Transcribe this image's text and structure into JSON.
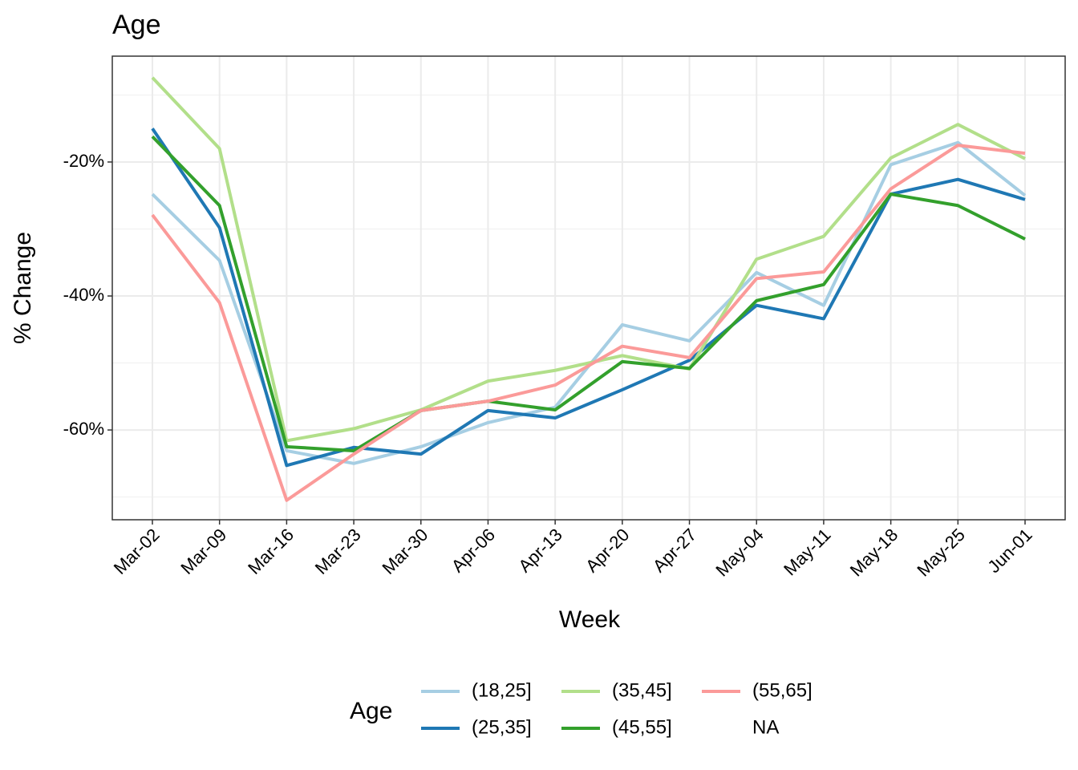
{
  "chart_data": {
    "type": "line",
    "title": "Age",
    "x_label": "Week",
    "y_label": "% Change",
    "categories": [
      "Mar-02",
      "Mar-09",
      "Mar-16",
      "Mar-23",
      "Mar-30",
      "Apr-06",
      "Apr-13",
      "Apr-20",
      "Apr-27",
      "May-04",
      "May-11",
      "May-18",
      "May-25",
      "Jun-01"
    ],
    "ylim": [
      -73.4,
      -4.2
    ],
    "yticks": [
      {
        "value": -60,
        "label": "-60%"
      },
      {
        "value": -40,
        "label": "-40%"
      },
      {
        "value": -20,
        "label": "-20%"
      }
    ],
    "y_minor_ticks": [
      -70,
      -50,
      -30,
      -10
    ],
    "grid": true,
    "legend_title": "Age",
    "legend_position": "bottom",
    "series": [
      {
        "name": "(18,25]",
        "color": "#a6cee3",
        "values": [
          -24.8,
          -34.7,
          -63.1,
          -65.0,
          -62.5,
          -58.9,
          -56.6,
          -44.3,
          -46.7,
          -36.5,
          -41.4,
          -20.4,
          -17.1,
          -25.0
        ]
      },
      {
        "name": "(25,35]",
        "color": "#1f78b4",
        "values": [
          -15.0,
          -29.8,
          -65.3,
          -62.6,
          -63.6,
          -57.1,
          -58.2,
          -54.0,
          -49.6,
          -41.4,
          -43.4,
          -24.8,
          -22.6,
          -25.6
        ]
      },
      {
        "name": "(35,45]",
        "color": "#b2df8a",
        "values": [
          -7.4,
          -18.0,
          -61.6,
          -59.8,
          -57.0,
          -52.7,
          -51.1,
          -48.9,
          -50.9,
          -34.5,
          -31.1,
          -19.4,
          -14.4,
          -19.5
        ]
      },
      {
        "name": "(45,55]",
        "color": "#33a02c",
        "values": [
          -16.2,
          -26.5,
          -62.5,
          -63.1,
          -57.1,
          -55.7,
          -57.0,
          -49.8,
          -50.8,
          -40.7,
          -38.3,
          -24.8,
          -26.5,
          -31.5
        ]
      },
      {
        "name": "(55,65]",
        "color": "#fb9a99",
        "values": [
          -27.9,
          -41.0,
          -70.5,
          -63.6,
          -57.1,
          -55.7,
          -53.3,
          -47.5,
          -49.2,
          -37.4,
          -36.4,
          -24.0,
          -17.5,
          -18.7
        ]
      },
      {
        "name": "NA",
        "color": null,
        "values": [
          null,
          null,
          null,
          null,
          null,
          null,
          null,
          null,
          null,
          null,
          null,
          null,
          null,
          null
        ]
      }
    ]
  }
}
